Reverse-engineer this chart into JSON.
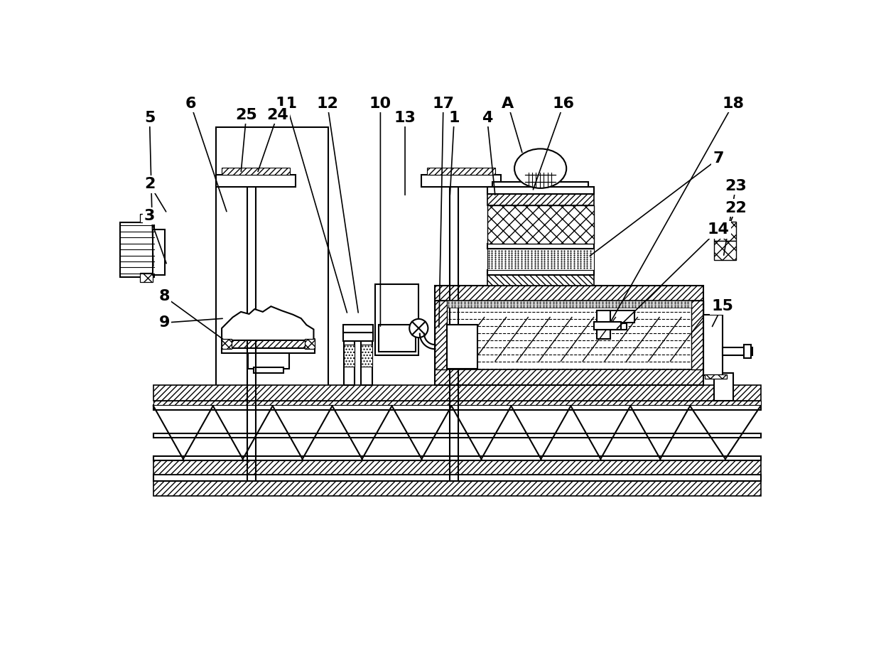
{
  "bg_color": "#ffffff",
  "lw": 1.5,
  "leaders": {
    "6": [
      143,
      900,
      210,
      700
    ],
    "11": [
      318,
      900,
      430,
      515
    ],
    "12": [
      393,
      900,
      450,
      515
    ],
    "10": [
      490,
      900,
      490,
      490
    ],
    "17": [
      605,
      900,
      597,
      488
    ],
    "A": [
      723,
      900,
      750,
      808
    ],
    "16": [
      825,
      900,
      768,
      740
    ],
    "18": [
      1135,
      900,
      910,
      500
    ],
    "7": [
      1108,
      800,
      870,
      620
    ],
    "14": [
      1108,
      670,
      920,
      487
    ],
    "15": [
      1115,
      530,
      1095,
      490
    ],
    "9": [
      95,
      500,
      205,
      508
    ],
    "8": [
      95,
      548,
      205,
      468
    ],
    "3": [
      68,
      695,
      100,
      605
    ],
    "2": [
      68,
      753,
      100,
      700
    ],
    "5": [
      68,
      875,
      75,
      600
    ],
    "22": [
      1140,
      710,
      1117,
      650
    ],
    "23": [
      1140,
      750,
      1117,
      620
    ],
    "1": [
      625,
      875,
      617,
      730
    ],
    "4": [
      685,
      875,
      700,
      730
    ],
    "13": [
      535,
      875,
      535,
      730
    ],
    "24": [
      302,
      880,
      265,
      773
    ],
    "25": [
      245,
      880,
      235,
      773
    ]
  }
}
